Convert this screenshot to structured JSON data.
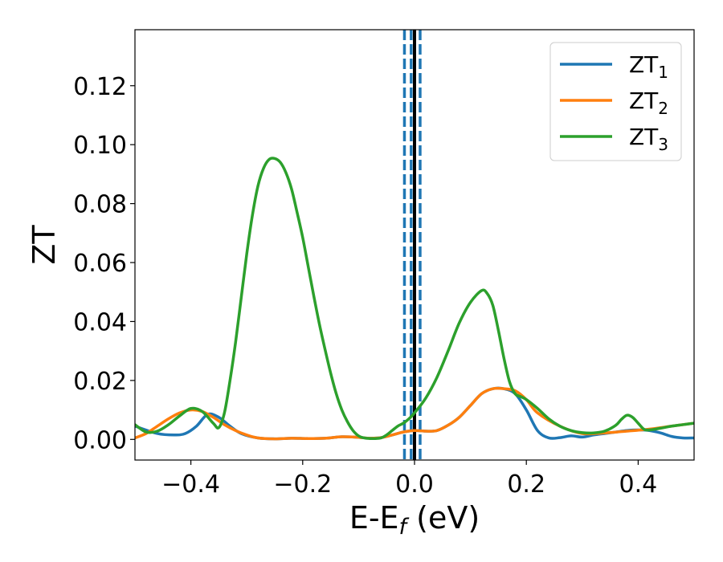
{
  "chart_data": {
    "type": "line",
    "title": "",
    "xlabel": {
      "main": "E-E",
      "sub": "f",
      "suffix": " (eV)"
    },
    "ylabel": "ZT",
    "xlim": [
      -0.5,
      0.5
    ],
    "ylim": [
      -0.007,
      0.139
    ],
    "xticks": [
      -0.4,
      -0.2,
      0.0,
      0.2,
      0.4
    ],
    "xtick_labels": [
      "−0.4",
      "−0.2",
      "0.0",
      "0.2",
      "0.4"
    ],
    "yticks": [
      0.0,
      0.02,
      0.04,
      0.06,
      0.08,
      0.1,
      0.12
    ],
    "ytick_labels": [
      "0.00",
      "0.02",
      "0.04",
      "0.06",
      "0.08",
      "0.10",
      "0.12"
    ],
    "grid": false,
    "legend_position": "top-right",
    "colors": {
      "zt1": "#1f77b4",
      "zt2": "#ff7f0e",
      "zt3": "#2ca02c",
      "fermi": "#000000"
    },
    "vlines": [
      {
        "x": -0.018,
        "style": "dashed",
        "color": "#1f77b4"
      },
      {
        "x": -0.006,
        "style": "dashed",
        "color": "#1f77b4"
      },
      {
        "x": 0.01,
        "style": "dashed",
        "color": "#1f77b4"
      },
      {
        "x": 0.0,
        "style": "solid",
        "color": "#000000"
      }
    ],
    "series": [
      {
        "name": "ZT",
        "sub": "1",
        "color": "#1f77b4",
        "x": [
          -0.5,
          -0.46,
          -0.43,
          -0.41,
          -0.39,
          -0.37,
          -0.35,
          -0.33,
          -0.31,
          -0.28,
          -0.25,
          -0.22,
          -0.19,
          -0.16,
          -0.13,
          -0.1,
          -0.08,
          -0.06,
          -0.04,
          -0.02,
          0.0,
          0.02,
          0.04,
          0.06,
          0.08,
          0.1,
          0.12,
          0.14,
          0.16,
          0.18,
          0.2,
          0.22,
          0.24,
          0.26,
          0.28,
          0.3,
          0.32,
          0.34,
          0.36,
          0.38,
          0.4,
          0.42,
          0.44,
          0.46,
          0.48,
          0.5
        ],
        "y": [
          0.0045,
          0.002,
          0.0015,
          0.002,
          0.0045,
          0.0085,
          0.0075,
          0.0045,
          0.002,
          0.0005,
          0.0002,
          0.0004,
          0.0003,
          0.0004,
          0.0009,
          0.0007,
          0.0004,
          0.0006,
          0.0015,
          0.0025,
          0.003,
          0.0028,
          0.003,
          0.0048,
          0.0075,
          0.0115,
          0.0155,
          0.0172,
          0.0172,
          0.0155,
          0.01,
          0.003,
          0.0005,
          0.0006,
          0.0012,
          0.0008,
          0.0015,
          0.002,
          0.0025,
          0.003,
          0.0032,
          0.003,
          0.0022,
          0.001,
          0.0005,
          0.0005
        ]
      },
      {
        "name": "ZT",
        "sub": "2",
        "color": "#ff7f0e",
        "x": [
          -0.5,
          -0.48,
          -0.46,
          -0.44,
          -0.42,
          -0.4,
          -0.38,
          -0.36,
          -0.34,
          -0.32,
          -0.3,
          -0.28,
          -0.25,
          -0.22,
          -0.19,
          -0.16,
          -0.13,
          -0.1,
          -0.08,
          -0.06,
          -0.04,
          -0.02,
          0.0,
          0.02,
          0.04,
          0.06,
          0.08,
          0.1,
          0.12,
          0.14,
          0.16,
          0.18,
          0.2,
          0.22,
          0.26,
          0.3,
          0.34,
          0.38,
          0.42,
          0.46,
          0.5
        ],
        "y": [
          0.0005,
          0.002,
          0.0045,
          0.007,
          0.009,
          0.01,
          0.0095,
          0.0075,
          0.005,
          0.003,
          0.0015,
          0.0005,
          0.0002,
          0.0004,
          0.0003,
          0.0004,
          0.0009,
          0.0007,
          0.0004,
          0.0006,
          0.0015,
          0.0025,
          0.003,
          0.0028,
          0.003,
          0.0048,
          0.0075,
          0.0115,
          0.0155,
          0.0172,
          0.0172,
          0.0165,
          0.0135,
          0.009,
          0.0045,
          0.002,
          0.0022,
          0.0028,
          0.0035,
          0.0045,
          0.0055
        ]
      },
      {
        "name": "ZT",
        "sub": "3",
        "color": "#2ca02c",
        "x": [
          -0.5,
          -0.48,
          -0.46,
          -0.44,
          -0.42,
          -0.4,
          -0.38,
          -0.36,
          -0.35,
          -0.34,
          -0.33,
          -0.32,
          -0.31,
          -0.3,
          -0.29,
          -0.28,
          -0.27,
          -0.26,
          -0.25,
          -0.24,
          -0.23,
          -0.22,
          -0.21,
          -0.2,
          -0.19,
          -0.18,
          -0.17,
          -0.16,
          -0.15,
          -0.14,
          -0.13,
          -0.12,
          -0.11,
          -0.1,
          -0.09,
          -0.08,
          -0.07,
          -0.06,
          -0.05,
          -0.04,
          -0.03,
          -0.02,
          -0.01,
          0.0,
          0.02,
          0.04,
          0.06,
          0.08,
          0.1,
          0.12,
          0.13,
          0.14,
          0.15,
          0.16,
          0.17,
          0.18,
          0.19,
          0.2,
          0.22,
          0.24,
          0.26,
          0.28,
          0.3,
          0.32,
          0.34,
          0.36,
          0.37,
          0.38,
          0.39,
          0.4,
          0.41,
          0.42,
          0.44,
          0.46,
          0.48,
          0.5
        ],
        "y": [
          0.005,
          0.0025,
          0.0028,
          0.005,
          0.008,
          0.0105,
          0.0095,
          0.0055,
          0.004,
          0.009,
          0.02,
          0.033,
          0.048,
          0.063,
          0.076,
          0.086,
          0.092,
          0.095,
          0.0953,
          0.094,
          0.0905,
          0.085,
          0.077,
          0.0685,
          0.0585,
          0.0485,
          0.039,
          0.0305,
          0.0225,
          0.0155,
          0.01,
          0.006,
          0.003,
          0.0012,
          0.0005,
          0.0003,
          0.0003,
          0.0005,
          0.0015,
          0.003,
          0.0045,
          0.0055,
          0.007,
          0.009,
          0.014,
          0.021,
          0.03,
          0.0395,
          0.0465,
          0.0505,
          0.0495,
          0.0455,
          0.037,
          0.0275,
          0.0195,
          0.0155,
          0.0145,
          0.0135,
          0.0105,
          0.007,
          0.0045,
          0.003,
          0.0023,
          0.0022,
          0.0028,
          0.0048,
          0.0068,
          0.0082,
          0.0075,
          0.0055,
          0.0035,
          0.0032,
          0.0038,
          0.0045,
          0.005,
          0.0055
        ]
      }
    ]
  }
}
